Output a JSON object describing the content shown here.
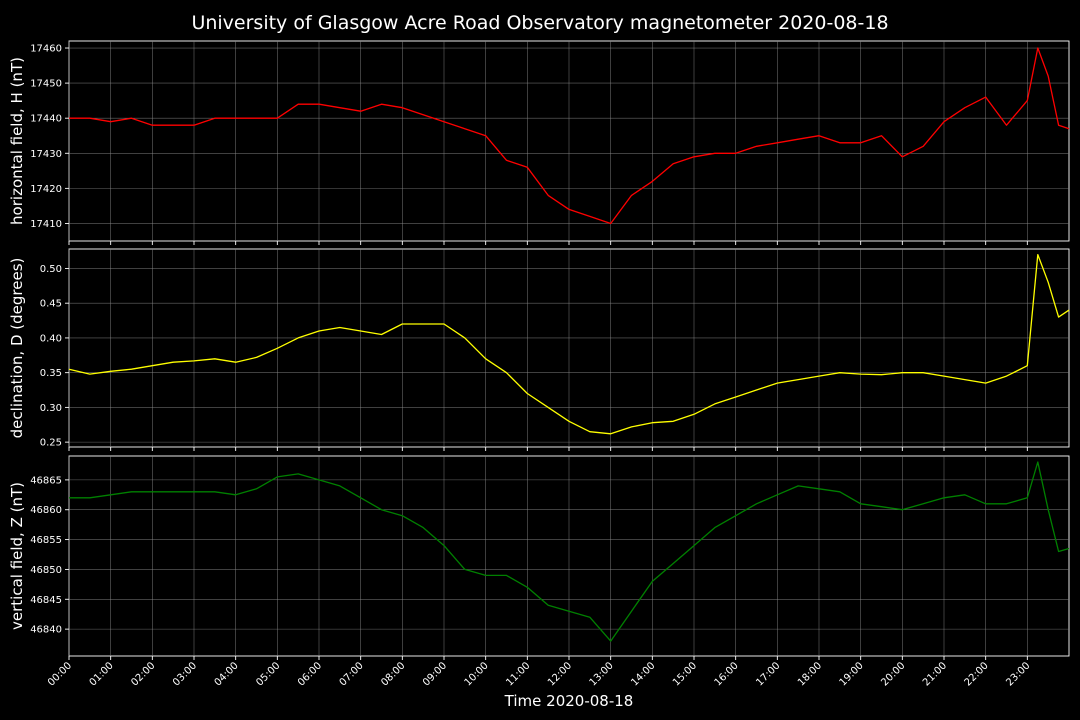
{
  "chart_data": {
    "title": "University of Glasgow Acre Road Observatory magnetometer 2020-08-18",
    "xlabel": "Time 2020-08-18",
    "x_ticks": [
      "00:00",
      "01:00",
      "02:00",
      "03:00",
      "04:00",
      "05:00",
      "06:00",
      "07:00",
      "08:00",
      "09:00",
      "10:00",
      "11:00",
      "12:00",
      "13:00",
      "14:00",
      "15:00",
      "16:00",
      "17:00",
      "18:00",
      "19:00",
      "20:00",
      "21:00",
      "22:00",
      "23:00"
    ],
    "xlim_hours": [
      0,
      24
    ],
    "grid": true,
    "panels": [
      {
        "type": "line",
        "ylabel": "horizontal field, H (nT)",
        "color": "#ff0000",
        "ylim": [
          17405,
          17462
        ],
        "y_ticks": [
          "17410",
          "17420",
          "17430",
          "17440",
          "17450",
          "17460"
        ],
        "x_hours": [
          0,
          0.5,
          1,
          1.5,
          2,
          2.5,
          3,
          3.5,
          4,
          4.5,
          5,
          5.5,
          6,
          6.5,
          7,
          7.5,
          8,
          8.5,
          9,
          9.5,
          10,
          10.5,
          11,
          11.5,
          12,
          12.5,
          13,
          13.5,
          14,
          14.5,
          15,
          15.5,
          16,
          16.5,
          17,
          17.5,
          18,
          18.5,
          19,
          19.5,
          20,
          20.5,
          21,
          21.5,
          22,
          22.5,
          23,
          23.25,
          23.5,
          23.75,
          24
        ],
        "values": [
          17440,
          17440,
          17439,
          17440,
          17438,
          17438,
          17438,
          17440,
          17440,
          17440,
          17440,
          17444,
          17444,
          17443,
          17442,
          17444,
          17443,
          17441,
          17439,
          17437,
          17435,
          17428,
          17426,
          17418,
          17414,
          17412,
          17410,
          17418,
          17422,
          17427,
          17429,
          17430,
          17430,
          17432,
          17433,
          17434,
          17435,
          17433,
          17433,
          17435,
          17429,
          17432,
          17439,
          17443,
          17446,
          17438,
          17445,
          17460,
          17452,
          17438,
          17437
        ]
      },
      {
        "type": "line",
        "ylabel": "declination, D (degrees)",
        "color": "#ffff00",
        "ylim": [
          0.243,
          0.528
        ],
        "y_ticks": [
          "0.25",
          "0.30",
          "0.35",
          "0.40",
          "0.45",
          "0.50"
        ],
        "x_hours": [
          0,
          0.5,
          1,
          1.5,
          2,
          2.5,
          3,
          3.5,
          4,
          4.5,
          5,
          5.5,
          6,
          6.5,
          7,
          7.5,
          8,
          8.5,
          9,
          9.5,
          10,
          10.5,
          11,
          11.5,
          12,
          12.5,
          13,
          13.5,
          14,
          14.5,
          15,
          15.5,
          16,
          16.5,
          17,
          17.5,
          18,
          18.5,
          19,
          19.5,
          20,
          20.5,
          21,
          21.5,
          22,
          22.5,
          23,
          23.25,
          23.5,
          23.75,
          24
        ],
        "values": [
          0.355,
          0.348,
          0.352,
          0.355,
          0.36,
          0.365,
          0.367,
          0.37,
          0.365,
          0.372,
          0.385,
          0.4,
          0.41,
          0.415,
          0.41,
          0.405,
          0.42,
          0.42,
          0.42,
          0.4,
          0.37,
          0.35,
          0.32,
          0.3,
          0.28,
          0.265,
          0.262,
          0.272,
          0.278,
          0.28,
          0.29,
          0.305,
          0.315,
          0.325,
          0.335,
          0.34,
          0.345,
          0.35,
          0.348,
          0.347,
          0.35,
          0.35,
          0.345,
          0.34,
          0.335,
          0.345,
          0.36,
          0.52,
          0.48,
          0.43,
          0.44
        ]
      },
      {
        "type": "line",
        "ylabel": "vertical field, Z (nT)",
        "color": "#008000",
        "ylim": [
          46835.5,
          46869
        ],
        "y_ticks": [
          "46840",
          "46845",
          "46850",
          "46855",
          "46860",
          "46865"
        ],
        "x_hours": [
          0,
          0.5,
          1,
          1.5,
          2,
          2.5,
          3,
          3.5,
          4,
          4.5,
          5,
          5.5,
          6,
          6.5,
          7,
          7.5,
          8,
          8.5,
          9,
          9.5,
          10,
          10.5,
          11,
          11.5,
          12,
          12.5,
          13,
          13.5,
          14,
          14.5,
          15,
          15.5,
          16,
          16.5,
          17,
          17.5,
          18,
          18.5,
          19,
          19.5,
          20,
          20.5,
          21,
          21.5,
          22,
          22.5,
          23,
          23.25,
          23.5,
          23.75,
          24
        ],
        "values": [
          46862,
          46862,
          46862.5,
          46863,
          46863,
          46863,
          46863,
          46863,
          46862.5,
          46863.5,
          46865.5,
          46866,
          46865,
          46864,
          46862,
          46860,
          46859,
          46857,
          46854,
          46850,
          46849,
          46849,
          46847,
          46844,
          46843,
          46842,
          46838,
          46843,
          46848,
          46851,
          46854,
          46857,
          46859,
          46861,
          46862.5,
          46864,
          46863.5,
          46863,
          46861,
          46860.5,
          46860,
          46861,
          46862,
          46862.5,
          46861,
          46861,
          46862,
          46868,
          46860,
          46853,
          46853.5
        ]
      }
    ]
  }
}
